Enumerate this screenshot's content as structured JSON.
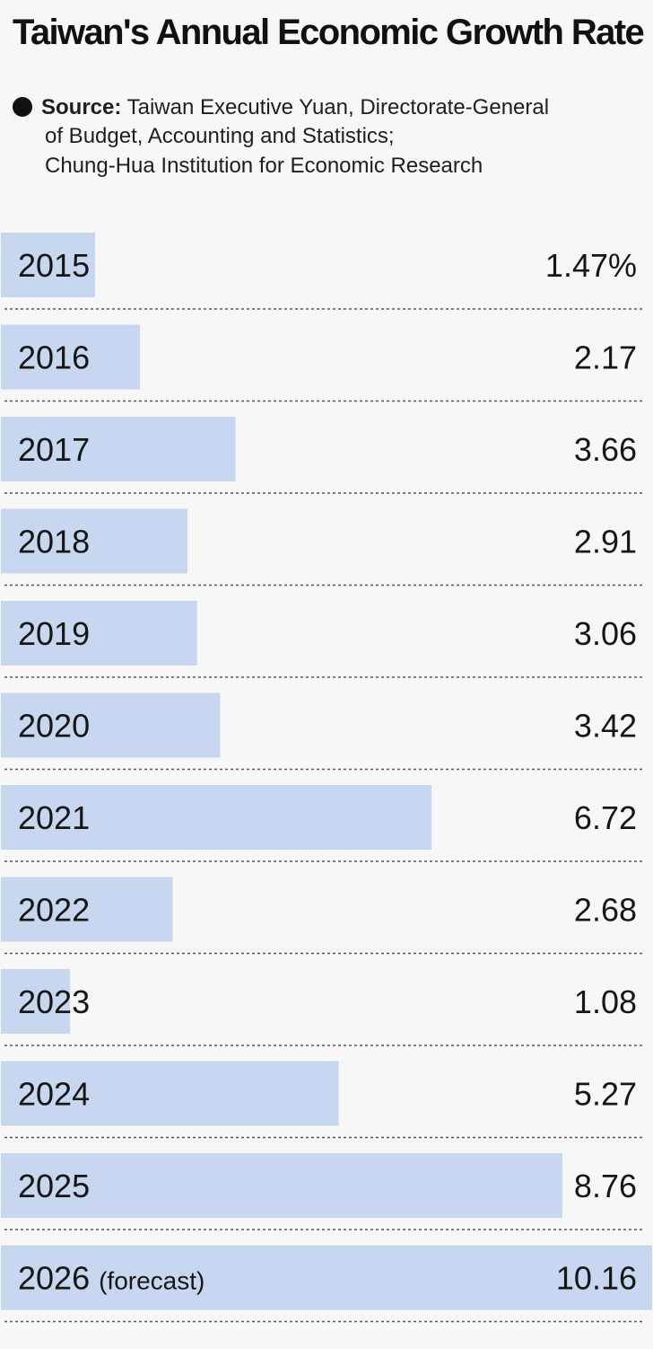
{
  "title": "Taiwan's Annual Economic Growth Rate",
  "source": {
    "label": "Source:",
    "line1": "Taiwan Executive Yuan, Directorate-General",
    "line2": "of Budget, Accounting and Statistics;",
    "line3": "Chung-Hua Institution for Economic Research"
  },
  "colors": {
    "bar": "#c7d7ef",
    "text": "#161616",
    "divider": "#555555",
    "background": "#f7f7f7"
  },
  "chart_data": {
    "type": "bar",
    "orientation": "horizontal",
    "title": "Taiwan's Annual Economic Growth Rate",
    "categories": [
      "2015",
      "2016",
      "2017",
      "2018",
      "2019",
      "2020",
      "2021",
      "2022",
      "2023",
      "2024",
      "2025",
      "2026"
    ],
    "category_suffixes": [
      "",
      "",
      "",
      "",
      "",
      "",
      "",
      "",
      "",
      "",
      "",
      "(forecast)"
    ],
    "values": [
      1.47,
      2.17,
      3.66,
      2.91,
      3.06,
      3.42,
      6.72,
      2.68,
      1.08,
      5.27,
      8.76,
      10.16
    ],
    "value_labels": [
      "1.47%",
      "2.17",
      "3.66",
      "2.91",
      "3.06",
      "3.42",
      "6.72",
      "2.68",
      "1.08",
      "5.27",
      "8.76",
      "10.16"
    ],
    "xlim": [
      0,
      10.16
    ],
    "grid": false,
    "legend": "none"
  }
}
